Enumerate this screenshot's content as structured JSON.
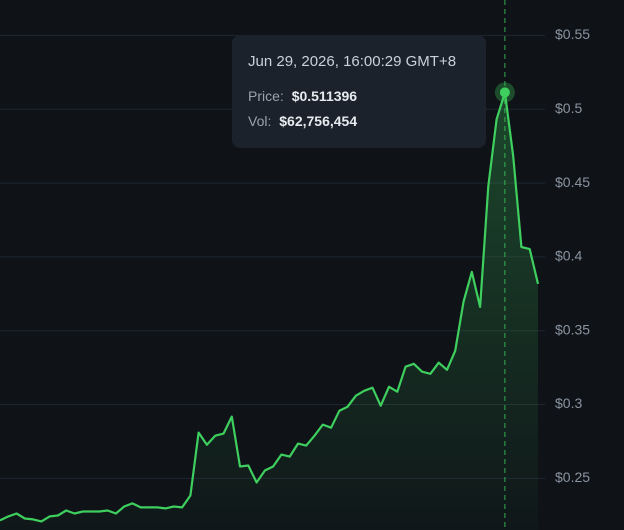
{
  "chart_data": {
    "type": "line",
    "series": [
      {
        "color": "#3ecf5e",
        "values": [
          0.2215,
          0.2242,
          0.2262,
          0.2228,
          0.2222,
          0.2208,
          0.2242,
          0.2248,
          0.2282,
          0.2262,
          0.2275,
          0.2275,
          0.2275,
          0.2282,
          0.2262,
          0.2309,
          0.233,
          0.2303,
          0.2303,
          0.2303,
          0.2296,
          0.2309,
          0.2303,
          0.2384,
          0.281,
          0.2728,
          0.2789,
          0.2803,
          0.2918,
          0.258,
          0.2587,
          0.2472,
          0.2553,
          0.258,
          0.2661,
          0.2647,
          0.2735,
          0.2722,
          0.2789,
          0.2864,
          0.2843,
          0.2958,
          0.2985,
          0.306,
          0.3093,
          0.3114,
          0.2992,
          0.312,
          0.3087,
          0.3256,
          0.3276,
          0.3222,
          0.3208,
          0.3283,
          0.3235,
          0.3364,
          0.3695,
          0.3898,
          0.3661,
          0.4479,
          0.4932,
          0.511396,
          0.4682,
          0.4067,
          0.4053,
          0.3817
        ]
      }
    ],
    "ylim": [
      0.215,
      0.574
    ],
    "yticks": [
      {
        "value": 0.25,
        "label": "$0.25"
      },
      {
        "value": 0.3,
        "label": "$0.3"
      },
      {
        "value": 0.35,
        "label": "$0.35"
      },
      {
        "value": 0.4,
        "label": "$0.4"
      },
      {
        "value": 0.45,
        "label": "$0.45"
      },
      {
        "value": 0.5,
        "label": "$0.5"
      },
      {
        "value": 0.55,
        "label": "$0.55"
      }
    ],
    "grid": true,
    "tooltip": {
      "date": "Jun 29, 2026, 16:00:29 GMT+8",
      "price_label": "Price:",
      "price": "$0.511396",
      "vol_label": "Vol:",
      "vol": "$62,756,454"
    }
  }
}
